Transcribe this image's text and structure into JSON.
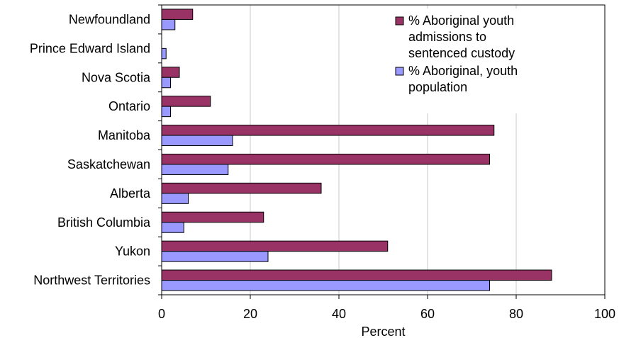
{
  "chart_data": {
    "type": "bar",
    "orientation": "horizontal",
    "categories": [
      "Newfoundland",
      "Prince Edward Island",
      "Nova Scotia",
      "Ontario",
      "Manitoba",
      "Saskatchewan",
      "Alberta",
      "British Columbia",
      "Yukon",
      "Northwest Territories"
    ],
    "series": [
      {
        "name": "% Aboriginal youth admissions to sentenced custody",
        "color": "#993366",
        "values": [
          7,
          0,
          4,
          11,
          75,
          74,
          36,
          23,
          51,
          88
        ]
      },
      {
        "name": "% Aboriginal, youth population",
        "color": "#9999ff",
        "values": [
          3,
          1,
          2,
          2,
          16,
          15,
          6,
          5,
          24,
          74
        ]
      }
    ],
    "xlabel": "Percent",
    "xlim": [
      0,
      100
    ],
    "xticks": [
      "0",
      "20",
      "40",
      "60",
      "80",
      "100"
    ],
    "grid": true,
    "legend_position": "top-right"
  }
}
